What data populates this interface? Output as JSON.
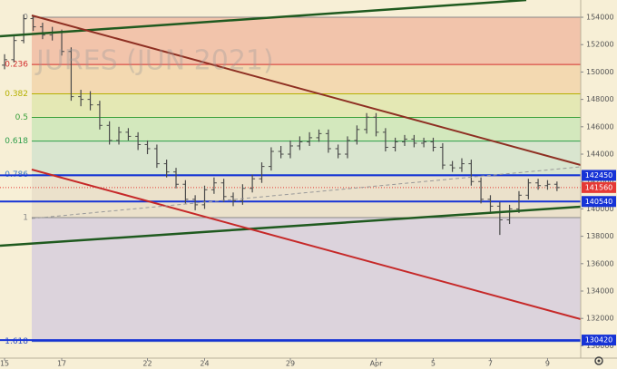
{
  "chart_data": {
    "type": "ohlc",
    "watermark": "JURES (JUN 2021)",
    "xlim": [
      -0.16,
      20.16
    ],
    "ylim": [
      129100,
      155260
    ],
    "xticks": [
      {
        "value": 0,
        "label": "15"
      },
      {
        "value": 2,
        "label": "17"
      },
      {
        "value": 5,
        "label": "22"
      },
      {
        "value": 7,
        "label": "24"
      },
      {
        "value": 10,
        "label": "29"
      },
      {
        "value": 13,
        "label": "Apr"
      },
      {
        "value": 15,
        "label": "5"
      },
      {
        "value": 17,
        "label": "7"
      },
      {
        "value": 19,
        "label": "9"
      }
    ],
    "yticks": [
      130000,
      132000,
      134000,
      136000,
      138000,
      140000,
      142000,
      144000,
      146000,
      148000,
      150000,
      152000,
      154000
    ],
    "color": "#4a4a4a",
    "x": [
      0,
      0.33,
      0.67,
      1,
      1.33,
      1.67,
      2,
      2.33,
      2.67,
      3,
      3.33,
      3.67,
      4,
      4.33,
      4.67,
      5,
      5.33,
      5.67,
      6,
      6.33,
      6.67,
      7,
      7.33,
      7.67,
      8,
      8.33,
      8.67,
      9,
      9.33,
      9.67,
      10,
      10.33,
      10.67,
      11,
      11.33,
      11.67,
      12,
      12.33,
      12.67,
      13,
      13.33,
      13.67,
      14,
      14.33,
      14.67,
      15,
      15.33,
      15.67,
      16,
      16.33,
      16.67,
      17,
      17.33,
      17.67,
      18,
      18.33,
      18.67,
      19,
      19.33
    ],
    "bars": [
      [
        150500,
        151300,
        150200,
        150900
      ],
      [
        150900,
        152600,
        150700,
        152300
      ],
      [
        152300,
        154200,
        152100,
        153900
      ],
      [
        153900,
        154100,
        153000,
        153300
      ],
      [
        153300,
        153600,
        152400,
        152700
      ],
      [
        152700,
        153300,
        152300,
        152900
      ],
      [
        152900,
        153100,
        151200,
        151500
      ],
      [
        151500,
        151800,
        147900,
        148200
      ],
      [
        148200,
        148700,
        147500,
        148000
      ],
      [
        148000,
        148600,
        147200,
        147600
      ],
      [
        147600,
        147900,
        145800,
        146100
      ],
      [
        146100,
        146400,
        144700,
        145000
      ],
      [
        145000,
        146000,
        144700,
        145600
      ],
      [
        145600,
        145900,
        145000,
        145300
      ],
      [
        145300,
        145600,
        144300,
        144700
      ],
      [
        144700,
        145000,
        144000,
        144400
      ],
      [
        144400,
        144700,
        143000,
        143300
      ],
      [
        143300,
        143600,
        142300,
        142700
      ],
      [
        142700,
        143000,
        141500,
        141800
      ],
      [
        141800,
        142100,
        140400,
        140700
      ],
      [
        140700,
        141000,
        139900,
        140300
      ],
      [
        140300,
        141700,
        140000,
        141400
      ],
      [
        141400,
        142300,
        141100,
        141900
      ],
      [
        141900,
        142200,
        140500,
        140900
      ],
      [
        140900,
        141200,
        140200,
        140600
      ],
      [
        140600,
        141800,
        140300,
        141500
      ],
      [
        141500,
        142500,
        141200,
        142200
      ],
      [
        142200,
        143400,
        141900,
        143100
      ],
      [
        143100,
        144500,
        142800,
        144200
      ],
      [
        144200,
        144600,
        143700,
        144000
      ],
      [
        144000,
        145000,
        143700,
        144600
      ],
      [
        144600,
        145300,
        144300,
        144900
      ],
      [
        144900,
        145600,
        144600,
        145200
      ],
      [
        145200,
        145800,
        144900,
        145500
      ],
      [
        145500,
        145800,
        144100,
        144400
      ],
      [
        144400,
        144700,
        143700,
        144000
      ],
      [
        144000,
        145300,
        143700,
        145000
      ],
      [
        145000,
        146100,
        144700,
        145800
      ],
      [
        145800,
        147000,
        145500,
        146700
      ],
      [
        146700,
        147000,
        145300,
        145600
      ],
      [
        145600,
        145900,
        144200,
        144500
      ],
      [
        144500,
        145200,
        144200,
        144900
      ],
      [
        144900,
        145400,
        144600,
        145100
      ],
      [
        145100,
        145400,
        144500,
        144800
      ],
      [
        144800,
        145200,
        144500,
        144900
      ],
      [
        144900,
        145200,
        144200,
        144500
      ],
      [
        144500,
        144800,
        142900,
        143200
      ],
      [
        143200,
        143500,
        142700,
        143000
      ],
      [
        143000,
        143700,
        142700,
        143300
      ],
      [
        143300,
        143600,
        141700,
        142000
      ],
      [
        142000,
        142300,
        140400,
        140700
      ],
      [
        140700,
        141000,
        139800,
        140200
      ],
      [
        140200,
        140500,
        138100,
        139200
      ],
      [
        139200,
        140300,
        138900,
        140000
      ],
      [
        140000,
        141300,
        139700,
        141000
      ],
      [
        141000,
        142200,
        140700,
        141900
      ],
      [
        141900,
        142200,
        141400,
        141700
      ],
      [
        141700,
        142100,
        141400,
        141800
      ],
      [
        141800,
        142000,
        141300,
        141560
      ]
    ],
    "fib_levels": [
      {
        "level": 0,
        "price": 154000,
        "color": "#888888",
        "zone_color": "#f2c4ab"
      },
      {
        "level": 0.236,
        "price": 150546,
        "color": "#d32f2f",
        "zone_color": "#f3d9b1"
      },
      {
        "level": 0.382,
        "price": 148409,
        "color": "#b5b000",
        "zone_color": "#e4e8b4"
      },
      {
        "level": 0.5,
        "price": 146682,
        "color": "#3aa03a",
        "zone_color": "#d3e8bd"
      },
      {
        "level": 0.618,
        "price": 144955,
        "color": "#2e9e4a",
        "zone_color": "#d9e5cf"
      },
      {
        "level": 0.786,
        "price": 142496,
        "color": "#3c7cc4",
        "zone_color": "#ebe1cb"
      },
      {
        "level": 1,
        "price": 139364,
        "color": "#888888",
        "zone_color": "#dcd3dc"
      },
      {
        "level": 1.618,
        "price": 130319,
        "color": "#2b4cc9"
      }
    ],
    "price_lines": [
      {
        "value": 142450,
        "color": "#1633d6"
      },
      {
        "value": 140540,
        "color": "#1633d6"
      },
      {
        "value": 130420,
        "color": "#1633d6"
      }
    ],
    "last_price": {
      "value": 141560,
      "color": "#e53935"
    }
  }
}
